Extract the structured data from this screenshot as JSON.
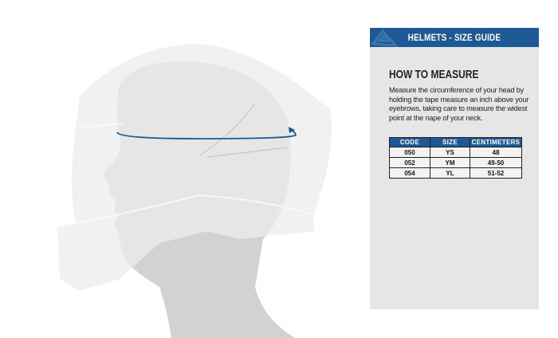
{
  "header": {
    "title": "HELMETS - SIZE GUIDE",
    "logo_icon": "brand-logo-icon",
    "color": "#1d5a95"
  },
  "how_to_measure": {
    "title": "HOW TO MEASURE",
    "text": "Measure the circumference of your head by holding the tape measure an inch above your eyebrows, taking care to measure the widest point at the nape of your neck."
  },
  "size_table": {
    "columns": [
      "CODE",
      "SIZE",
      "CENTIMETERS"
    ],
    "rows": [
      [
        "050",
        "YS",
        "48"
      ],
      [
        "052",
        "YM",
        "49-50"
      ],
      [
        "054",
        "YL",
        "51-52"
      ]
    ]
  },
  "illustration": {
    "subject": "helmet-head-profile",
    "tape_color": "#1d5a95"
  }
}
